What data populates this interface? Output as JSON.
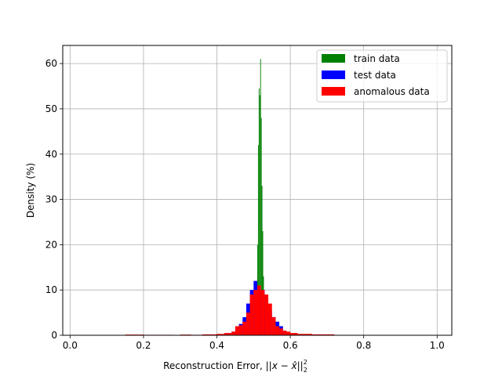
{
  "chart_data": {
    "type": "histogram",
    "title": "",
    "xlabel_prefix": "Reconstruction Error, ",
    "xlabel_math": "||x − x̂||",
    "xlabel_sub": "2",
    "xlabel_sup": "2",
    "ylabel": "Density (%)",
    "xlim": [
      -0.02,
      1.04
    ],
    "ylim": [
      0,
      64
    ],
    "xticks": [
      0.0,
      0.2,
      0.4,
      0.6,
      0.8,
      1.0
    ],
    "xtick_labels": [
      "0.0",
      "0.2",
      "0.4",
      "0.6",
      "0.8",
      "1.0"
    ],
    "yticks": [
      0,
      10,
      20,
      30,
      40,
      50,
      60
    ],
    "ytick_labels": [
      "0",
      "10",
      "20",
      "30",
      "40",
      "50",
      "60"
    ],
    "grid": true,
    "legend_position": "top-right",
    "series": [
      {
        "name": "train data",
        "color": "#008000",
        "bins": [
          [
            0.5,
            0.502,
            1.0
          ],
          [
            0.502,
            0.504,
            2.0
          ],
          [
            0.504,
            0.506,
            3.5
          ],
          [
            0.506,
            0.508,
            5.5
          ],
          [
            0.508,
            0.51,
            9.0
          ],
          [
            0.51,
            0.512,
            20.0
          ],
          [
            0.512,
            0.514,
            42.0
          ],
          [
            0.514,
            0.516,
            54.5
          ],
          [
            0.516,
            0.518,
            53.0
          ],
          [
            0.518,
            0.52,
            61.0
          ],
          [
            0.52,
            0.522,
            48.0
          ],
          [
            0.522,
            0.524,
            33.0
          ],
          [
            0.524,
            0.526,
            23.0
          ],
          [
            0.526,
            0.528,
            13.0
          ],
          [
            0.528,
            0.53,
            6.0
          ],
          [
            0.53,
            0.532,
            3.0
          ],
          [
            0.532,
            0.534,
            1.5
          ]
        ]
      },
      {
        "name": "test data",
        "color": "#0000ff",
        "bins": [
          [
            0.44,
            0.45,
            0.8
          ],
          [
            0.45,
            0.46,
            1.5
          ],
          [
            0.46,
            0.47,
            2.5
          ],
          [
            0.47,
            0.48,
            4.0
          ],
          [
            0.48,
            0.49,
            7.0
          ],
          [
            0.49,
            0.5,
            10.0
          ],
          [
            0.5,
            0.51,
            12.0
          ],
          [
            0.51,
            0.52,
            10.0
          ],
          [
            0.52,
            0.53,
            10.0
          ],
          [
            0.53,
            0.54,
            8.0
          ],
          [
            0.54,
            0.55,
            5.5
          ],
          [
            0.55,
            0.56,
            4.0
          ],
          [
            0.56,
            0.57,
            3.0
          ],
          [
            0.57,
            0.58,
            2.0
          ],
          [
            0.58,
            0.59,
            1.0
          ],
          [
            0.59,
            0.6,
            0.6
          ]
        ]
      },
      {
        "name": "anomalous data",
        "color": "#ff0000",
        "bins": [
          [
            0.15,
            0.2,
            0.15
          ],
          [
            0.2,
            0.28,
            0.1
          ],
          [
            0.3,
            0.33,
            0.15
          ],
          [
            0.33,
            0.36,
            0.1
          ],
          [
            0.36,
            0.4,
            0.2
          ],
          [
            0.4,
            0.42,
            0.3
          ],
          [
            0.42,
            0.44,
            0.5
          ],
          [
            0.44,
            0.45,
            0.8
          ],
          [
            0.45,
            0.46,
            2.0
          ],
          [
            0.46,
            0.47,
            2.2
          ],
          [
            0.47,
            0.48,
            3.0
          ],
          [
            0.48,
            0.49,
            5.0
          ],
          [
            0.49,
            0.5,
            9.0
          ],
          [
            0.5,
            0.51,
            10.0
          ],
          [
            0.51,
            0.52,
            11.0
          ],
          [
            0.52,
            0.53,
            10.0
          ],
          [
            0.53,
            0.54,
            9.0
          ],
          [
            0.54,
            0.55,
            7.0
          ],
          [
            0.55,
            0.56,
            4.0
          ],
          [
            0.56,
            0.57,
            2.0
          ],
          [
            0.57,
            0.58,
            1.5
          ],
          [
            0.58,
            0.59,
            1.0
          ],
          [
            0.59,
            0.6,
            0.8
          ],
          [
            0.6,
            0.62,
            0.5
          ],
          [
            0.62,
            0.66,
            0.3
          ],
          [
            0.66,
            0.72,
            0.2
          ]
        ]
      }
    ]
  }
}
